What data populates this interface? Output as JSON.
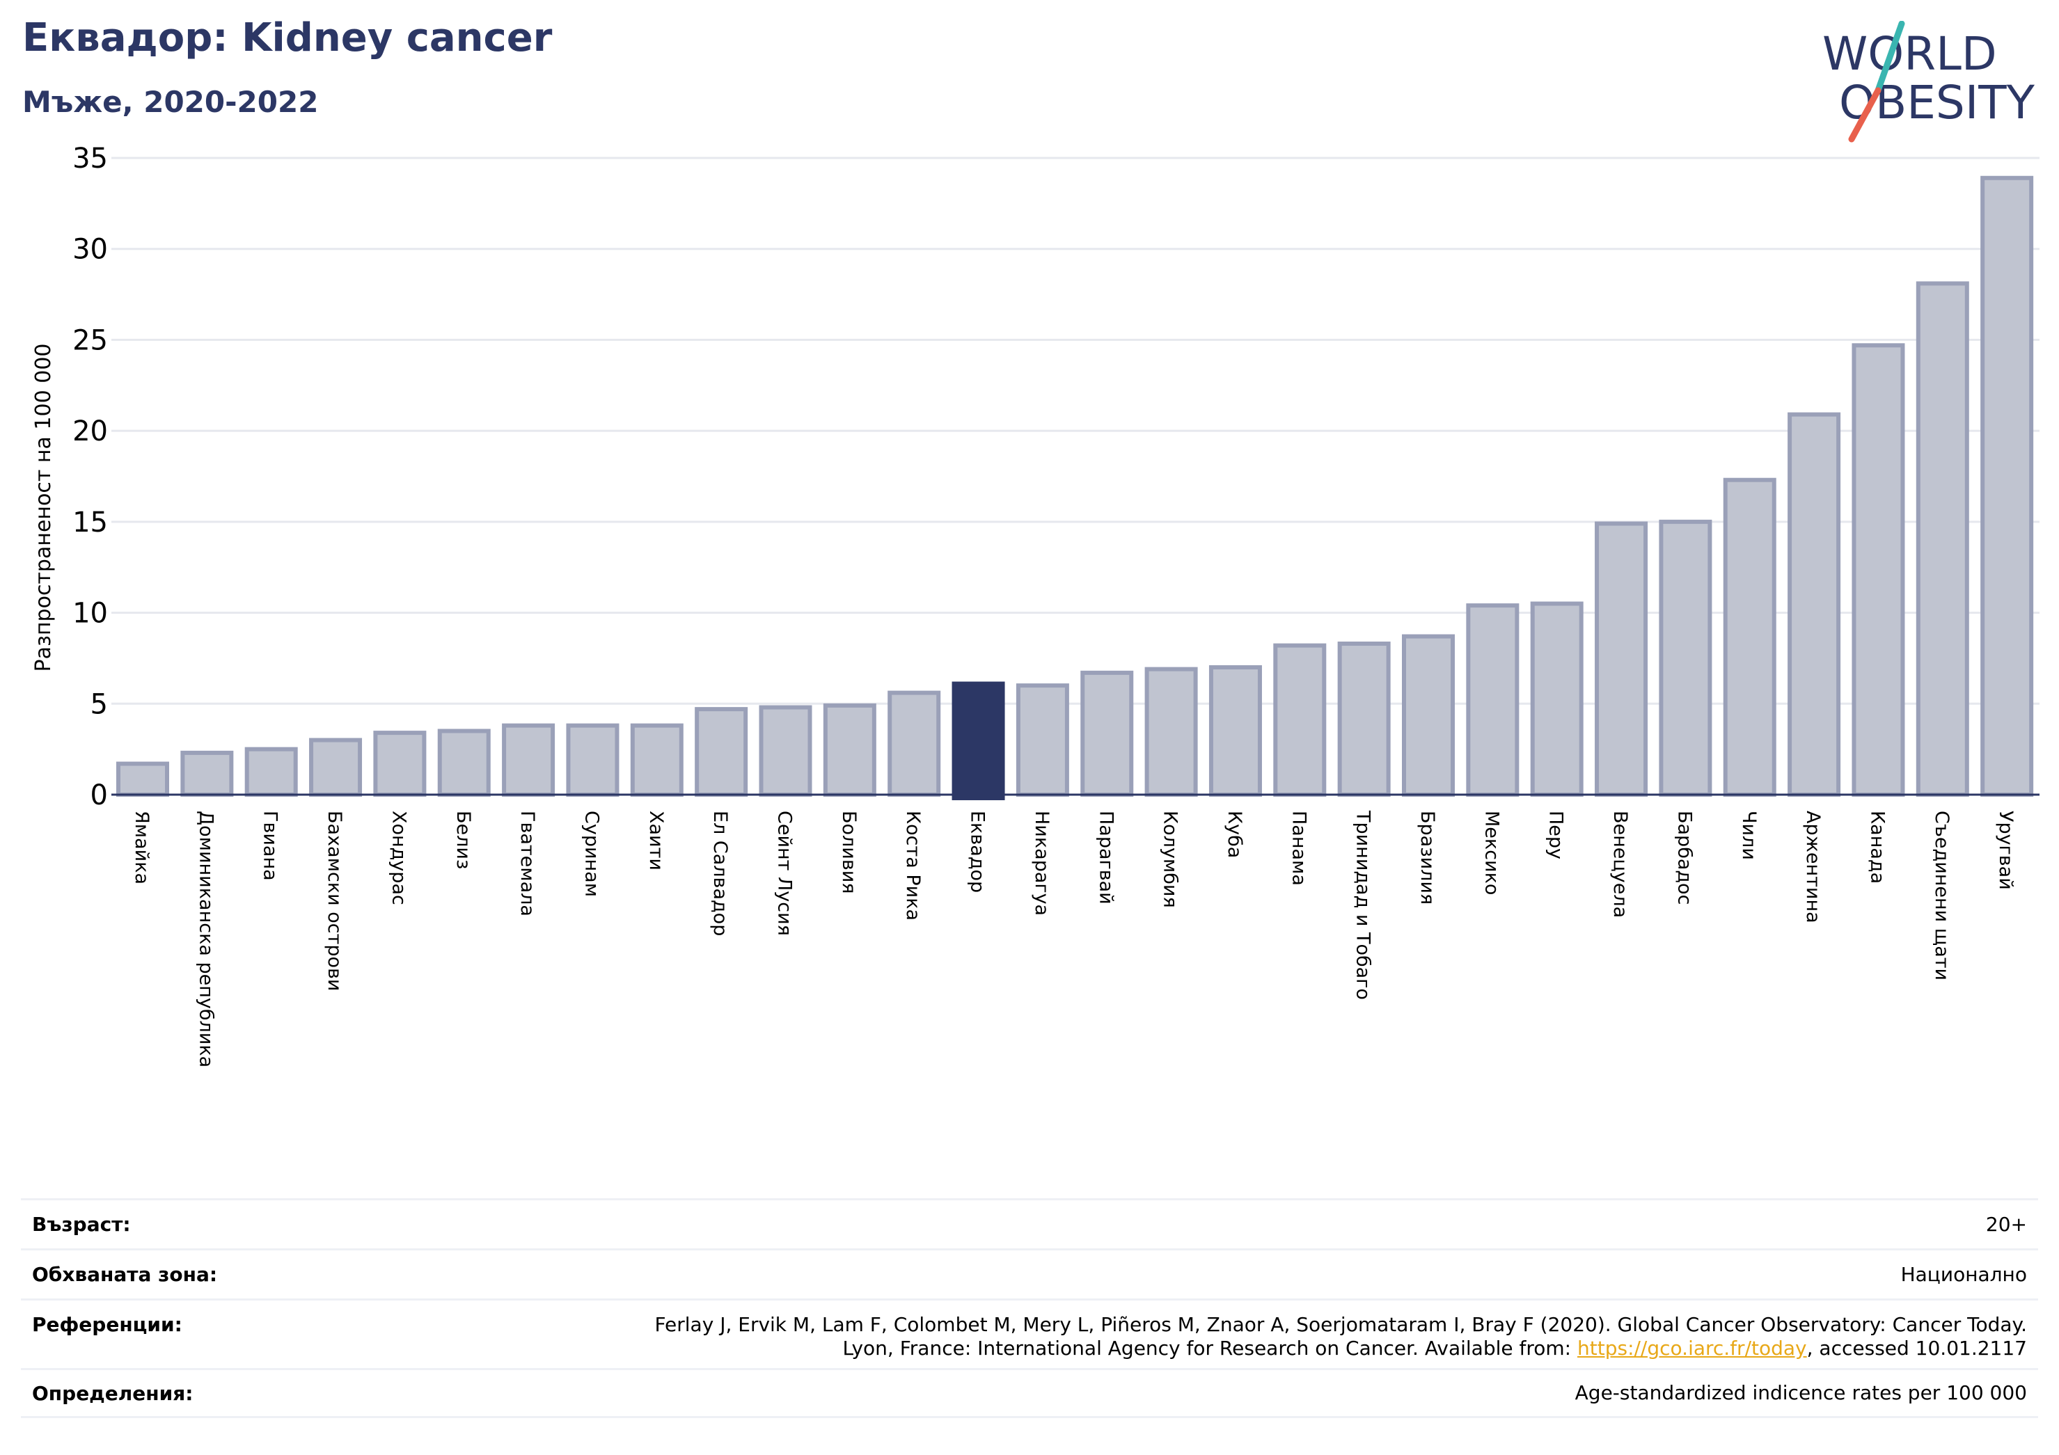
{
  "header": {
    "title": "Еквадор: Kidney cancer",
    "subtitle": "Мъже, 2020-2022"
  },
  "logo": {
    "line1": "WORLD",
    "line2": "OBESITY",
    "colors": {
      "text": "#2c3765",
      "slash_top": "#3ab5b0",
      "slash_bottom": "#e8604c"
    }
  },
  "chart_data": {
    "type": "bar",
    "title": "",
    "xlabel": "",
    "ylabel": "Разпространеност  на 100 000",
    "ylim": [
      0,
      35
    ],
    "yticks": [
      0,
      5,
      10,
      15,
      20,
      25,
      30,
      35
    ],
    "grid": true,
    "highlight": "Еквадор",
    "colors": {
      "bar": "#c0c4d0",
      "bar_edge": "#9aa0b8",
      "highlight": "#2c3765",
      "grid": "#e6e8ee",
      "axis": "#2c3765"
    },
    "categories": [
      "Ямайка",
      "Доминиканска република",
      "Гвиана",
      "Бахамски острови",
      "Хондурас",
      "Белиз",
      "Гватемала",
      "Суринам",
      "Хаити",
      "Ел Салвадор",
      "Сейнт Лусия",
      "Боливия",
      "Коста Рика",
      "Еквадор",
      "Никарагуа",
      "Парагвай",
      "Колумбия",
      "Куба",
      "Панама",
      "Тринидад и Тобаго",
      "Бразилия",
      "Мексико",
      "Перу",
      "Венецуела",
      "Барбадос",
      "Чили",
      "Аржентина",
      "Канада",
      "Съединени щати",
      "Уругвай"
    ],
    "values": [
      1.7,
      2.3,
      2.5,
      3.0,
      3.4,
      3.5,
      3.8,
      3.8,
      3.8,
      4.7,
      4.8,
      4.9,
      5.6,
      6.1,
      6.0,
      6.7,
      6.9,
      7.0,
      8.2,
      8.3,
      8.7,
      10.4,
      10.5,
      14.9,
      15.0,
      17.3,
      20.9,
      24.7,
      28.1,
      33.9
    ]
  },
  "info": {
    "age_label": "Възраст:",
    "age_value": "20+",
    "area_label": "Обхваната зона:",
    "area_value": "Национално",
    "refs_label": "Референции:",
    "refs_line1": "Ferlay J, Ervik M, Lam F, Colombet M, Mery L, Piñeros M, Znaor A, Soerjomataram I, Bray F (2020). Global Cancer Observatory: Cancer Today.",
    "refs_line2_pre": "Lyon, France: International Agency for Research on Cancer. Available from: ",
    "refs_link": "https://gco.iarc.fr/today",
    "refs_line2_post": ", accessed 10.01.2117",
    "defs_label": "Определения:",
    "defs_value": "Age-standardized indicence rates per 100 000"
  }
}
